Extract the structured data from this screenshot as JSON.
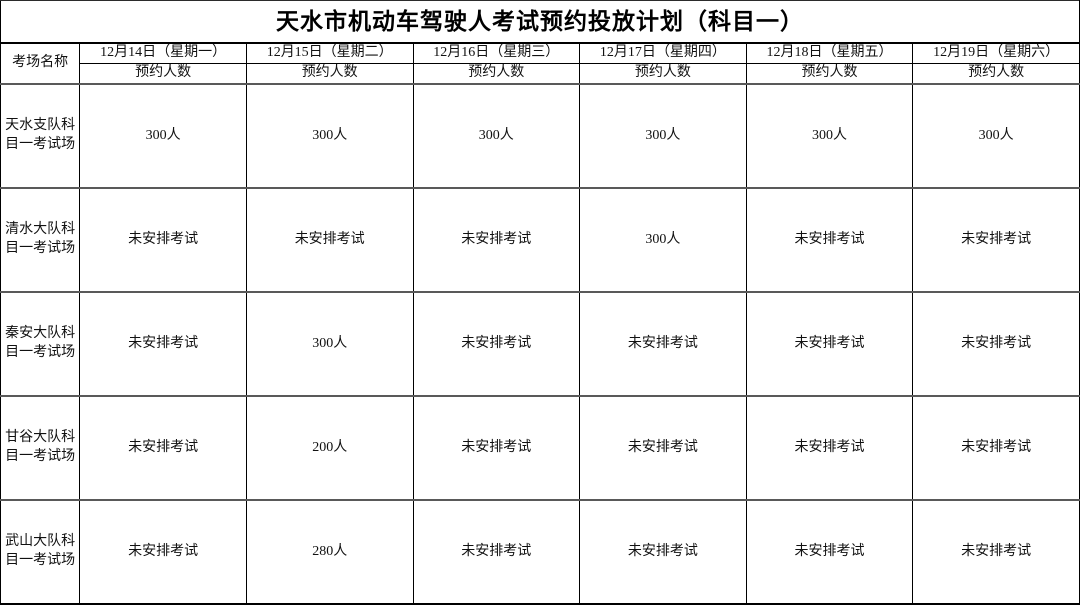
{
  "title": "天水市机动车驾驶人考试预约投放计划（科目一）",
  "table": {
    "corner_header": "考场名称",
    "sub_header": "预约人数",
    "date_headers": [
      "12月14日（星期一）",
      "12月15日（星期二）",
      "12月16日（星期三）",
      "12月17日（星期四）",
      "12月18日（星期五）",
      "12月19日（星期六）"
    ],
    "rows": [
      {
        "venue": "天水支队科目一考试场",
        "values": [
          "300人",
          "300人",
          "300人",
          "300人",
          "300人",
          "300人"
        ]
      },
      {
        "venue": "清水大队科目一考试场",
        "values": [
          "未安排考试",
          "未安排考试",
          "未安排考试",
          "300人",
          "未安排考试",
          "未安排考试"
        ]
      },
      {
        "venue": "秦安大队科目一考试场",
        "values": [
          "未安排考试",
          "300人",
          "未安排考试",
          "未安排考试",
          "未安排考试",
          "未安排考试"
        ]
      },
      {
        "venue": "甘谷大队科目一考试场",
        "values": [
          "未安排考试",
          "200人",
          "未安排考试",
          "未安排考试",
          "未安排考试",
          "未安排考试"
        ]
      },
      {
        "venue": "武山大队科目一考试场",
        "values": [
          "未安排考试",
          "280人",
          "未安排考试",
          "未安排考试",
          "未安排考试",
          "未安排考试"
        ]
      }
    ]
  },
  "colors": {
    "border_black": "#000000",
    "divider_gray": "#595959",
    "text": "#111111",
    "background": "#ffffff"
  },
  "chart_data": {
    "type": "table",
    "title": "天水市机动车驾驶人考试预约投放计划（科目一）",
    "columns": [
      "考场名称",
      "12月14日（星期一）预约人数",
      "12月15日（星期二）预约人数",
      "12月16日（星期三）预约人数",
      "12月17日（星期四）预约人数",
      "12月18日（星期五）预约人数",
      "12月19日（星期六）预约人数"
    ],
    "rows": [
      [
        "天水支队科目一考试场",
        "300人",
        "300人",
        "300人",
        "300人",
        "300人",
        "300人"
      ],
      [
        "清水大队科目一考试场",
        "未安排考试",
        "未安排考试",
        "未安排考试",
        "300人",
        "未安排考试",
        "未安排考试"
      ],
      [
        "秦安大队科目一考试场",
        "未安排考试",
        "300人",
        "未安排考试",
        "未安排考试",
        "未安排考试",
        "未安排考试"
      ],
      [
        "甘谷大队科目一考试场",
        "未安排考试",
        "200人",
        "未安排考试",
        "未安排考试",
        "未安排考试",
        "未安排考试"
      ],
      [
        "武山大队科目一考试场",
        "未安排考试",
        "280人",
        "未安排考试",
        "未安排考试",
        "未安排考试",
        "未安排考试"
      ]
    ]
  }
}
